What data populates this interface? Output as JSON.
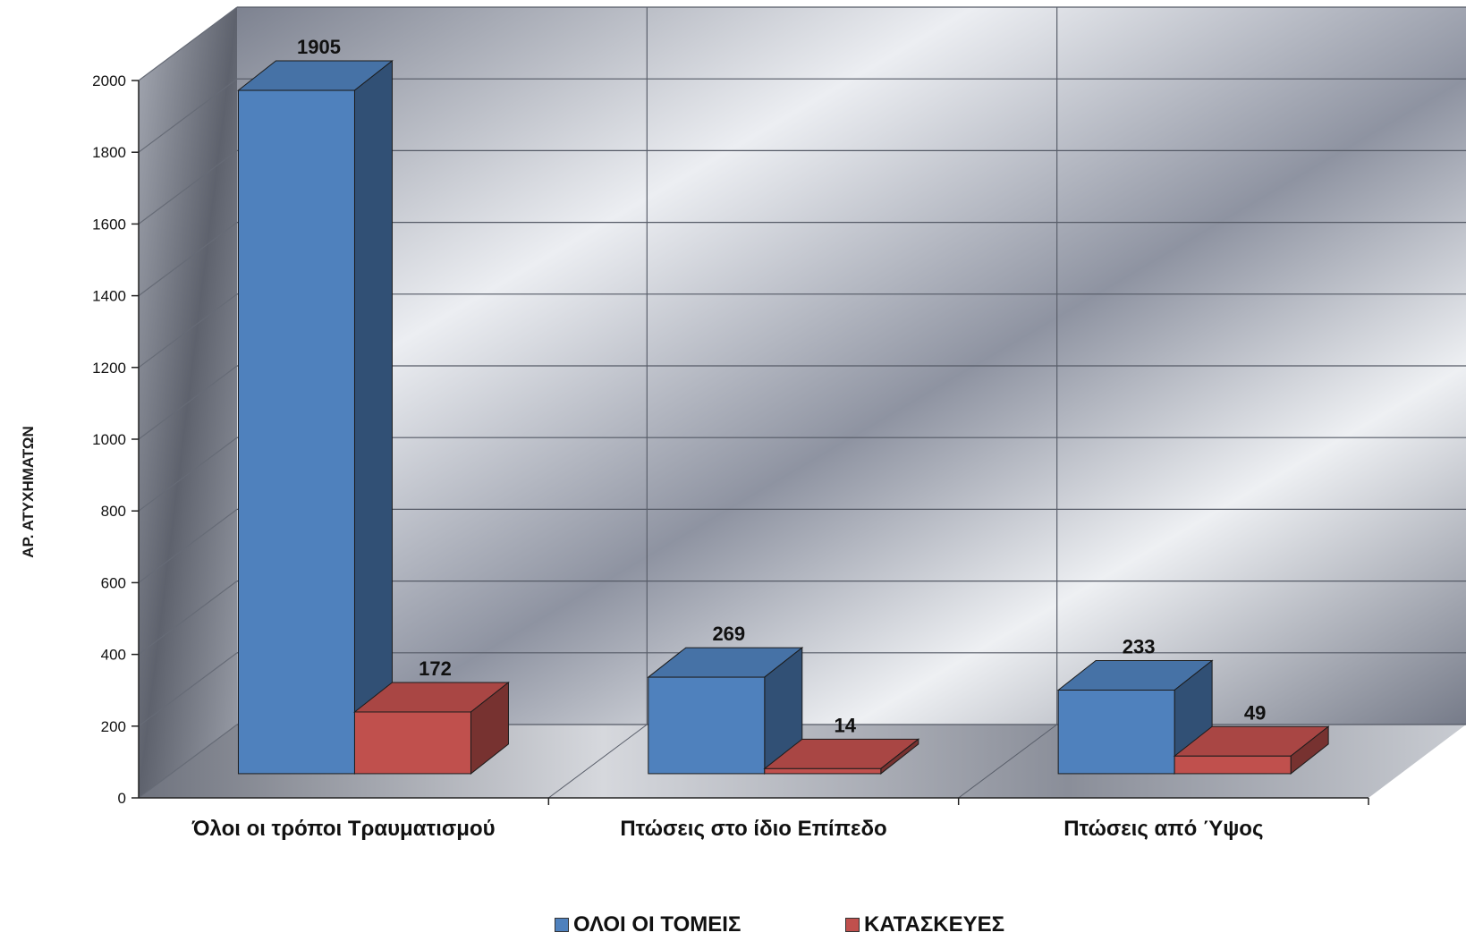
{
  "chart_data": {
    "type": "bar",
    "categories": [
      "Όλοι οι τρόποι Τραυματισμού",
      "Πτώσεις στο ίδιο Επίπεδο",
      "Πτώσεις από Ύψος"
    ],
    "series": [
      {
        "name": "ΟΛΟΙ ΟΙ ΤΟΜΕΙΣ",
        "values": [
          1905,
          269,
          233
        ],
        "color": "#4f81bd"
      },
      {
        "name": "ΚΑΤΑΣΚΕΥΕΣ",
        "values": [
          172,
          14,
          49
        ],
        "color": "#c0504d"
      }
    ],
    "title": "",
    "xlabel": "",
    "ylabel": "ΑΡ. ΑΤΥΧΗΜΑΤΩΝ",
    "ylim": [
      0,
      2000
    ],
    "yticks": [
      0,
      200,
      400,
      600,
      800,
      1000,
      1200,
      1400,
      1600,
      1800,
      2000
    ],
    "grid": true,
    "legend": "bottom",
    "three_d": true
  }
}
